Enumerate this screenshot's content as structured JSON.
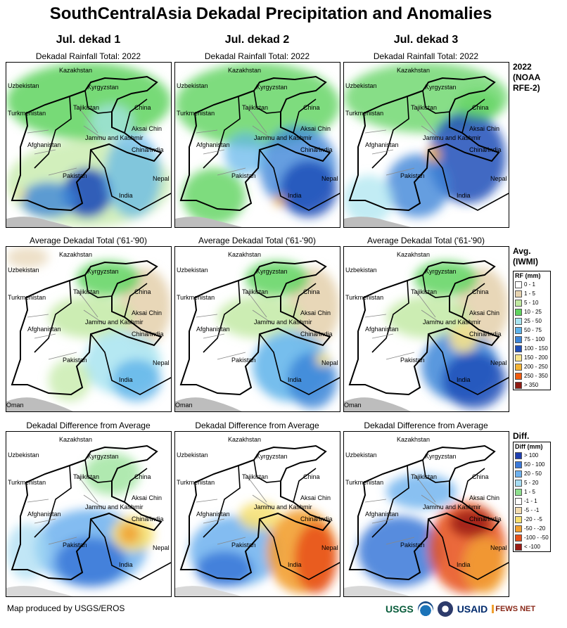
{
  "title": "SouthCentralAsia Dekadal Precipitation and Anomalies",
  "columns": [
    "Jul. dekad 1",
    "Jul. dekad 2",
    "Jul. dekad 3"
  ],
  "rows": [
    {
      "panel_label": "Dekadal Rainfall Total: 2022",
      "side_title": [
        "2022",
        "(NOAA",
        "RFE-2)"
      ],
      "kind": "rain"
    },
    {
      "panel_label": "Average Dekadal Total ('61-'90)",
      "side_title": [
        "Avg.",
        "(IWMI)"
      ],
      "kind": "avg"
    },
    {
      "panel_label": "Dekadal Difference from Average",
      "side_title": [
        "Diff."
      ],
      "kind": "diff"
    }
  ],
  "place_labels": [
    "Kazakhstan",
    "Uzbekistan",
    "Kyrgyzstan",
    "Tajikistan",
    "China",
    "Turkmenistan",
    "Aksai Chin",
    "Jammu and Kashmir",
    "Afghanistan",
    "China/India",
    "Pakistan",
    "Nepal",
    "India",
    "Oman"
  ],
  "rf_legend": {
    "title": "RF (mm)",
    "items": [
      {
        "label": "0 - 1",
        "color": "#ffffff"
      },
      {
        "label": "1 - 5",
        "color": "#e6d3b0"
      },
      {
        "label": "5 - 10",
        "color": "#bfe8a0"
      },
      {
        "label": "10 - 25",
        "color": "#5fd35f"
      },
      {
        "label": "25 - 50",
        "color": "#a8e4f0"
      },
      {
        "label": "50 - 75",
        "color": "#5eb3ea"
      },
      {
        "label": "75 - 100",
        "color": "#3d86d8"
      },
      {
        "label": "100 - 150",
        "color": "#1f4fb8"
      },
      {
        "label": "150 - 200",
        "color": "#f7e38b"
      },
      {
        "label": "200 - 250",
        "color": "#f4b334"
      },
      {
        "label": "250 - 350",
        "color": "#f05a0f"
      },
      {
        "label": "> 350",
        "color": "#8e1a12"
      }
    ]
  },
  "diff_legend": {
    "title": "Diff (mm)",
    "items": [
      {
        "label": "> 100",
        "color": "#1f3fb0"
      },
      {
        "label": "50 - 100",
        "color": "#3a78d8"
      },
      {
        "label": "20 - 50",
        "color": "#6cb0ee"
      },
      {
        "label": "5 - 20",
        "color": "#a6dcf2"
      },
      {
        "label": "1 - 5",
        "color": "#8ee08e"
      },
      {
        "label": "-1 - 1",
        "color": "#ffffff"
      },
      {
        "label": "-5 - -1",
        "color": "#f2dcb0"
      },
      {
        "label": "-20 - -5",
        "color": "#f7e070"
      },
      {
        "label": "-50 - -20",
        "color": "#f2a030"
      },
      {
        "label": "-100 - -50",
        "color": "#e8501a"
      },
      {
        "label": "< -100",
        "color": "#9a1a14"
      }
    ]
  },
  "footer": "Map produced by USGS/EROS",
  "logos": [
    "USGS",
    "USAID",
    "FEWS NET"
  ]
}
